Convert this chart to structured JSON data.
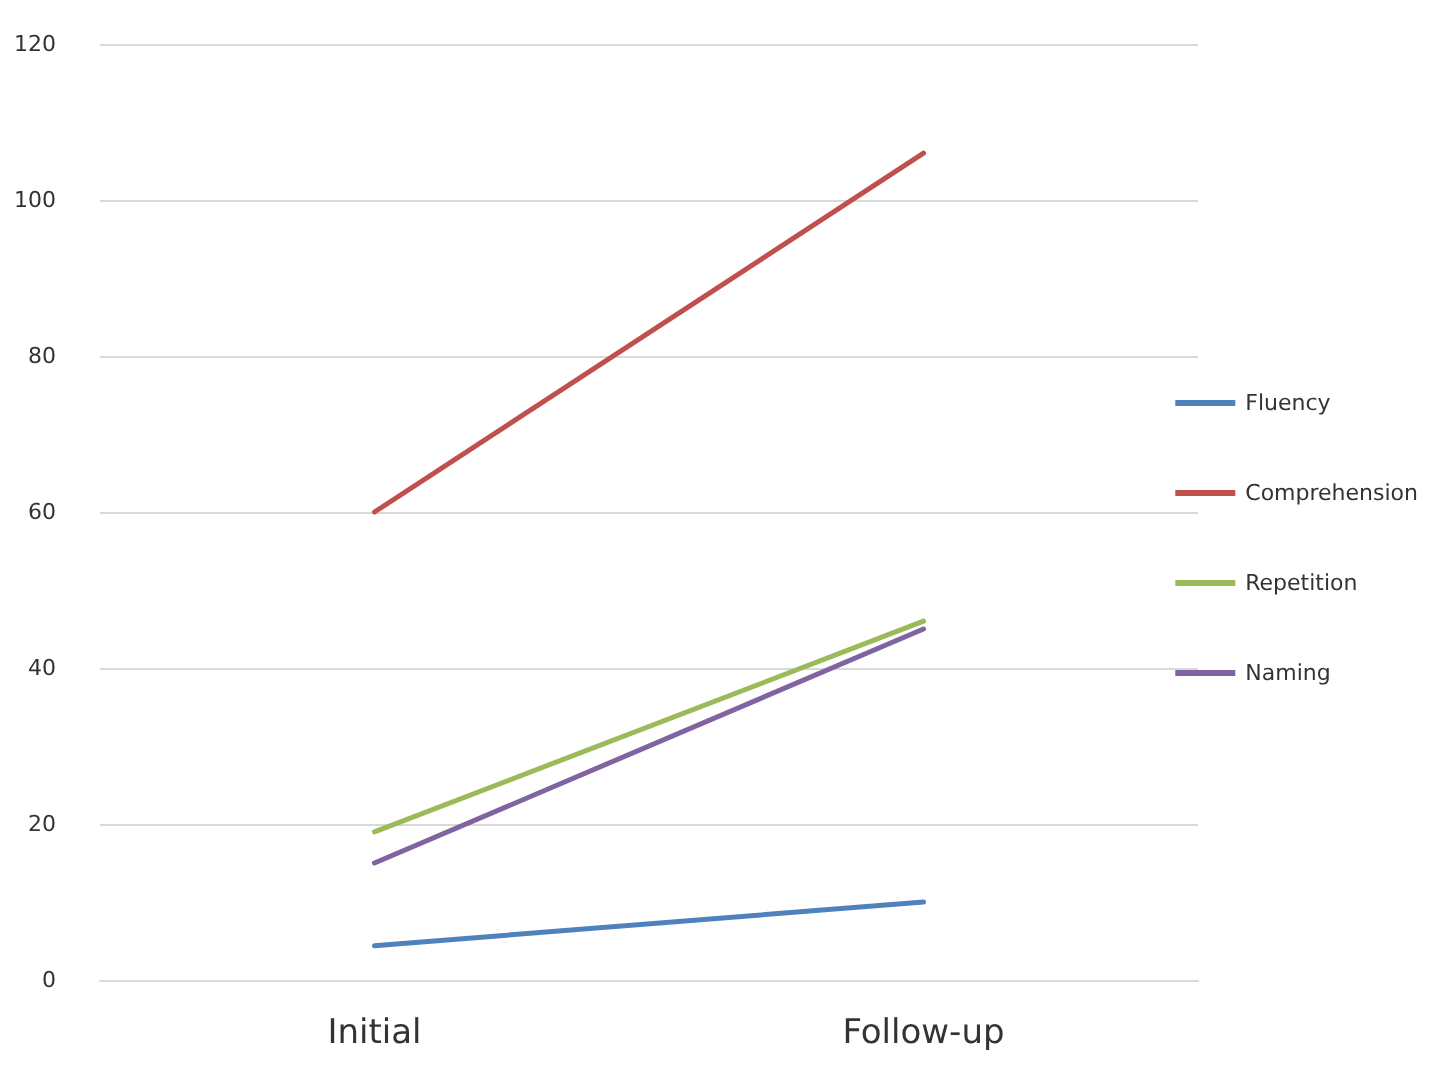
{
  "chart_data": {
    "type": "line",
    "categories": [
      "Initial",
      "Follow-up"
    ],
    "series": [
      {
        "name": "Fluency",
        "color": "#4f81bd",
        "values": [
          4.4,
          10
        ]
      },
      {
        "name": "Comprehension",
        "color": "#c0504d",
        "values": [
          60,
          106
        ]
      },
      {
        "name": "Repetition",
        "color": "#9bbb59",
        "values": [
          19,
          46
        ]
      },
      {
        "name": "Naming",
        "color": "#8064a2",
        "values": [
          15,
          45
        ]
      }
    ],
    "ylim": [
      0,
      120
    ],
    "yticks": [
      0,
      20,
      40,
      60,
      80,
      100,
      120
    ],
    "grid": "y",
    "legend": "right",
    "marker": "none"
  }
}
